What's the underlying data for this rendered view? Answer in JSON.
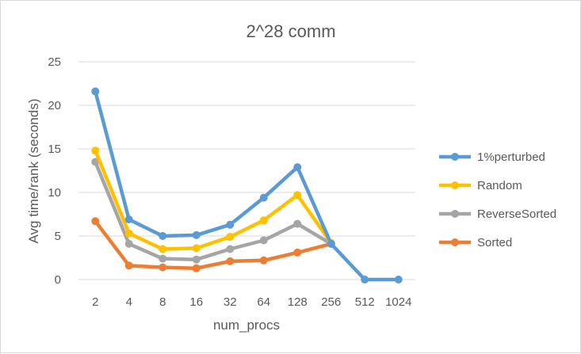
{
  "chart_data": {
    "type": "line",
    "title": "2^28 comm",
    "xlabel": "num_procs",
    "ylabel": "Avg time/rank (seconds)",
    "categories": [
      "2",
      "4",
      "8",
      "16",
      "32",
      "64",
      "128",
      "256",
      "512",
      "1024"
    ],
    "ylim": [
      0,
      25
    ],
    "yticks": [
      "0",
      "5",
      "10",
      "15",
      "20",
      "25"
    ],
    "grid": true,
    "legend_position": "right",
    "series": [
      {
        "name": "1%perturbed",
        "color": "#5b9bd5",
        "values": [
          21.6,
          6.9,
          5.0,
          5.1,
          6.3,
          9.4,
          12.9,
          4.1,
          0.0,
          0.0
        ]
      },
      {
        "name": "Random",
        "color": "#ffc000",
        "values": [
          14.8,
          5.3,
          3.5,
          3.6,
          4.9,
          6.8,
          9.7,
          4.2,
          null,
          null
        ]
      },
      {
        "name": "ReverseSorted",
        "color": "#a5a5a5",
        "values": [
          13.5,
          4.1,
          2.4,
          2.3,
          3.5,
          4.5,
          6.4,
          4.1,
          null,
          null
        ]
      },
      {
        "name": "Sorted",
        "color": "#ed7d31",
        "values": [
          6.7,
          1.6,
          1.4,
          1.3,
          2.1,
          2.2,
          3.1,
          4.1,
          null,
          null
        ]
      }
    ]
  }
}
